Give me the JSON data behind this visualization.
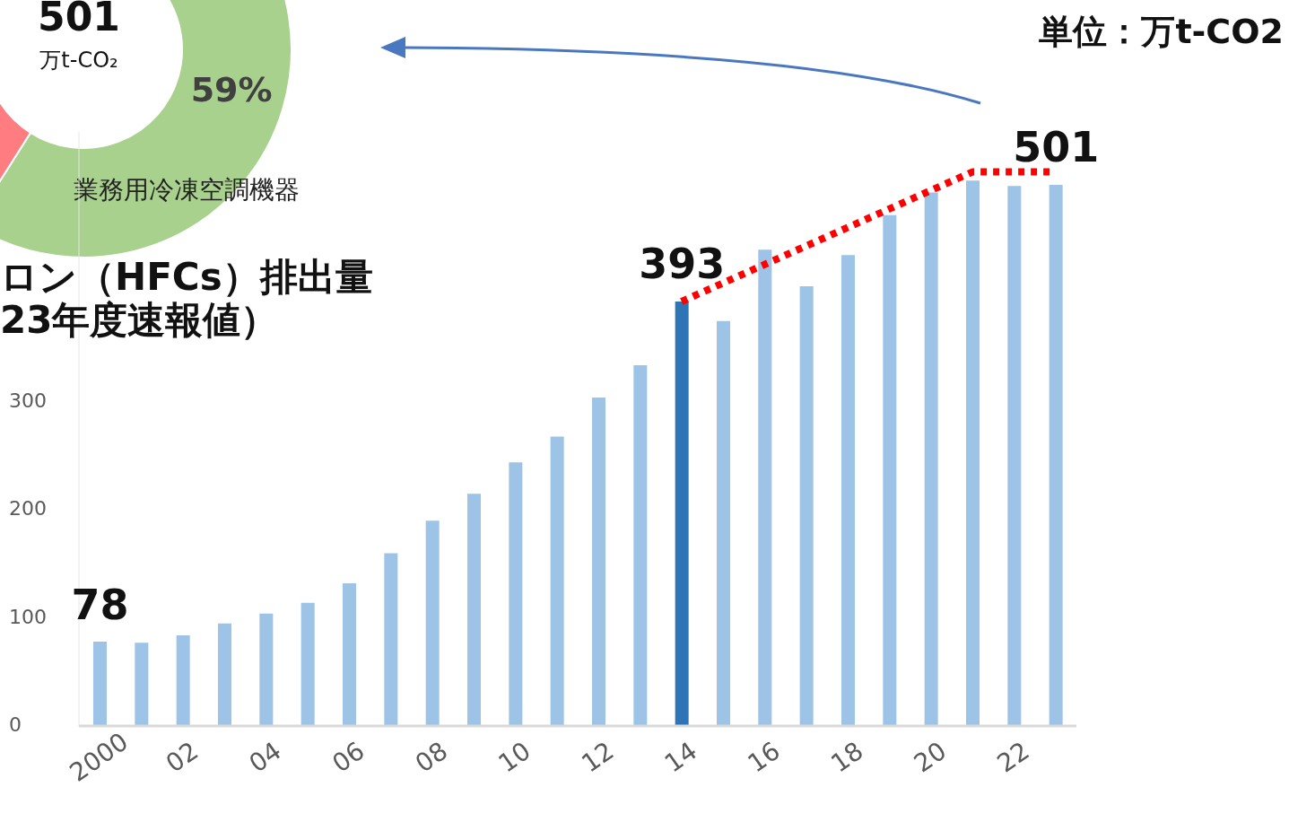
{
  "chart_data": [
    {
      "type": "donut",
      "categories": [
        "業務用冷凍空調機器",
        null
      ],
      "values": [
        59,
        41
      ],
      "colors": [
        "#a9d18e",
        "#ff7c80"
      ],
      "value_labels": [
        "59%",
        null
      ],
      "annotations": [
        "501",
        "万t-CO₂"
      ]
    },
    {
      "type": "bar",
      "title": "ロン（HFCs）排出量\n23年度速報値）",
      "annotations": [
        "単位：万t-CO2"
      ],
      "categories": [
        "2000",
        null,
        "02",
        null,
        "04",
        null,
        "06",
        null,
        "08",
        null,
        "10",
        null,
        "12",
        null,
        "14",
        null,
        "16",
        null,
        "18",
        null,
        "20",
        null,
        "22",
        null
      ],
      "ylim": [
        0,
        550
      ],
      "yticks": [
        0,
        100,
        200,
        300
      ],
      "series": [
        {
          "type": "bar",
          "values": [
            78,
            77,
            84,
            95,
            104,
            114,
            132,
            160,
            190,
            215,
            244,
            268,
            304,
            334,
            393,
            375,
            441,
            407,
            436,
            473,
            494,
            505,
            500,
            501
          ],
          "colors": [
            "#9dc3e6",
            "#9dc3e6",
            "#9dc3e6",
            "#9dc3e6",
            "#9dc3e6",
            "#9dc3e6",
            "#9dc3e6",
            "#9dc3e6",
            "#9dc3e6",
            "#9dc3e6",
            "#9dc3e6",
            "#9dc3e6",
            "#9dc3e6",
            "#9dc3e6",
            "#2e75b6",
            "#9dc3e6",
            "#9dc3e6",
            "#9dc3e6",
            "#9dc3e6",
            "#9dc3e6",
            "#9dc3e6",
            "#9dc3e6",
            "#9dc3e6",
            "#9dc3e6"
          ],
          "value_labels": [
            "78",
            null,
            null,
            null,
            null,
            null,
            null,
            null,
            null,
            null,
            null,
            null,
            null,
            null,
            "393",
            null,
            null,
            null,
            null,
            null,
            null,
            null,
            null,
            "501"
          ]
        },
        {
          "type": "line",
          "color": "#ff0000",
          "line_style": "dotted",
          "values": [
            null,
            null,
            null,
            null,
            null,
            null,
            null,
            null,
            null,
            null,
            null,
            null,
            null,
            null,
            393,
            null,
            null,
            null,
            null,
            null,
            null,
            513,
            null,
            513
          ]
        }
      ]
    }
  ]
}
